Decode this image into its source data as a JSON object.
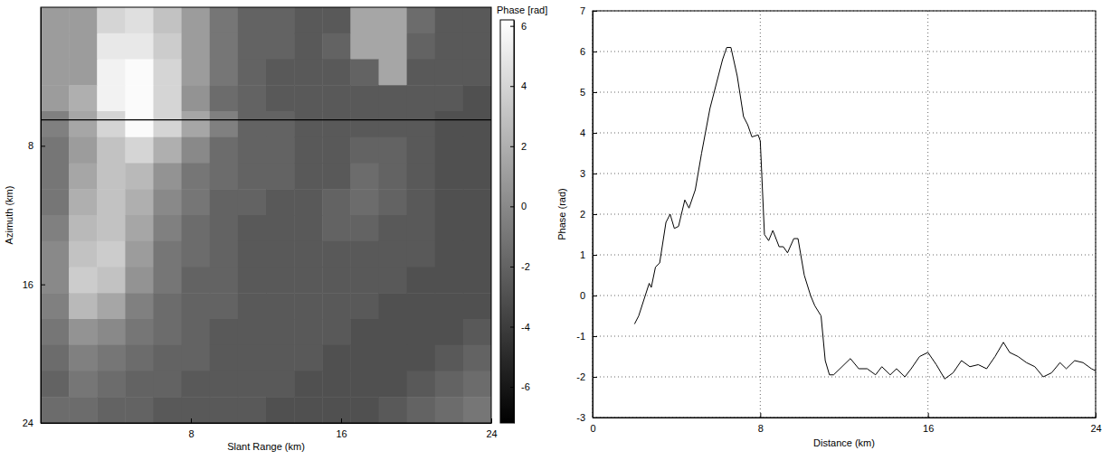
{
  "chart_data": [
    {
      "type": "heatmap",
      "xlabel": "Slant Range (km)",
      "ylabel": "Azimuth (km)",
      "xlim": [
        0,
        24
      ],
      "ylim": [
        0,
        24
      ],
      "xticks": [
        8,
        16,
        24
      ],
      "yticks": [
        8,
        16,
        24
      ],
      "profile_azimuth": 6.5,
      "colorbar": {
        "label": "Phase [rad]",
        "lim": [
          -7.2,
          6.2
        ],
        "ticks": [
          -6,
          -4,
          -2,
          0,
          2,
          4,
          6
        ]
      },
      "cells": [
        [
          1,
          1,
          4,
          4.5,
          3,
          1,
          -1,
          -2,
          -2,
          -2.5,
          -2.5,
          1.5,
          1.5,
          -1.5,
          -2.5,
          -2.5
        ],
        [
          1,
          1,
          5,
          5,
          3.5,
          1,
          -1,
          -2,
          -2,
          -2.5,
          -2,
          1.5,
          1.5,
          -2,
          -2.5,
          -2.5
        ],
        [
          1,
          1,
          5.5,
          6,
          4,
          1,
          -1,
          -2,
          -2.5,
          -2.5,
          -2.5,
          -2,
          1.5,
          -2.5,
          -2.5,
          -2.5
        ],
        [
          1,
          2,
          5.5,
          6,
          4,
          0.5,
          -1.5,
          -2,
          -2.5,
          -2.5,
          -2.5,
          -2.5,
          -2.5,
          -2.5,
          -2.5,
          -3
        ],
        [
          -0.5,
          1.5,
          4,
          6,
          4,
          1.5,
          -0.5,
          -2,
          -2,
          -2.5,
          -2.5,
          -2.5,
          -2.5,
          -2.5,
          -3,
          -3
        ],
        [
          -1,
          1,
          3,
          4,
          2,
          0,
          -1.5,
          -2,
          -2,
          -2.5,
          -2.5,
          -2,
          -2,
          -2.5,
          -3,
          -3
        ],
        [
          -1,
          1.5,
          3,
          2.5,
          0.5,
          -1,
          -1.5,
          -2,
          -2,
          -2.5,
          -2.5,
          -1.5,
          -2,
          -2.5,
          -3,
          -3
        ],
        [
          -1,
          2,
          3,
          2,
          0,
          -1,
          -2,
          -2,
          -2.5,
          -2.5,
          -2,
          -1.5,
          -2,
          -2.5,
          -3,
          -3
        ],
        [
          -0.5,
          2.5,
          3,
          1.5,
          -0.5,
          -1.5,
          -2,
          -2.5,
          -2.5,
          -2.5,
          -2,
          -2,
          -2.5,
          -2.5,
          -3,
          -3
        ],
        [
          0,
          3,
          3.5,
          1,
          -1,
          -1.5,
          -2,
          -2.5,
          -2.5,
          -2.5,
          -2.5,
          -2.5,
          -2.5,
          -2.5,
          -3,
          -3
        ],
        [
          0,
          3.5,
          3,
          0.5,
          -1,
          -2,
          -2,
          -2.5,
          -2.5,
          -2.5,
          -2.5,
          -2.5,
          -2.5,
          -3,
          -3,
          -3
        ],
        [
          -0.5,
          2.5,
          1.5,
          -0.5,
          -1.5,
          -2,
          -2,
          -2.5,
          -2.5,
          -2.5,
          -2.5,
          -2.5,
          -3,
          -3,
          -3,
          -3
        ],
        [
          -1,
          0.5,
          0,
          -1,
          -1.5,
          -2,
          -2.5,
          -2.5,
          -2.5,
          -2.5,
          -2.5,
          -3,
          -3,
          -3,
          -3,
          -2.5
        ],
        [
          -1.5,
          -0.5,
          -1,
          -1.5,
          -2,
          -2,
          -2.5,
          -2.5,
          -2.5,
          -2.5,
          -3,
          -3,
          -3,
          -3,
          -2.5,
          -2
        ],
        [
          -2,
          -1,
          -1.5,
          -2,
          -2,
          -2.5,
          -2.5,
          -2.5,
          -2.5,
          -3,
          -3,
          -3,
          -3,
          -2.5,
          -2,
          -1.5
        ],
        [
          -1.5,
          -1.5,
          -2,
          -2,
          -2.5,
          -2.5,
          -2.5,
          -2.5,
          -3,
          -3,
          -3,
          -3,
          -2.5,
          -2,
          -1.5,
          -1
        ]
      ]
    },
    {
      "type": "line",
      "xlabel": "Distance (km)",
      "ylabel": "Phase (rad)",
      "xlim": [
        0,
        24
      ],
      "ylim": [
        -3,
        7
      ],
      "xticks": [
        0,
        8,
        16,
        24
      ],
      "yticks": [
        -3,
        -2,
        -1,
        0,
        1,
        2,
        3,
        4,
        5,
        6,
        7
      ],
      "grid": true,
      "color": "#000000",
      "x": [
        2,
        2.2,
        2.7,
        2.8,
        3.0,
        3.2,
        3.5,
        3.7,
        3.9,
        4.1,
        4.4,
        4.6,
        4.9,
        5.2,
        5.6,
        5.9,
        6.2,
        6.4,
        6.6,
        6.9,
        7.2,
        7.4,
        7.6,
        7.9,
        8.0,
        8.2,
        8.4,
        8.6,
        8.9,
        9.1,
        9.3,
        9.6,
        9.8,
        10.1,
        10.4,
        10.6,
        10.9,
        11.1,
        11.3,
        11.5,
        12.0,
        12.3,
        12.7,
        13.1,
        13.5,
        13.8,
        14.2,
        14.5,
        14.9,
        15.2,
        15.6,
        16.0,
        16.4,
        16.8,
        17.2,
        17.6,
        18.0,
        18.4,
        18.8,
        19.2,
        19.6,
        19.9,
        20.3,
        20.7,
        21.1,
        21.5,
        21.9,
        22.3,
        22.6,
        23.0,
        23.4,
        23.8,
        24.0
      ],
      "values": [
        -0.7,
        -0.5,
        0.3,
        0.2,
        0.7,
        0.8,
        1.8,
        2.0,
        1.65,
        1.7,
        2.35,
        2.15,
        2.6,
        3.5,
        4.6,
        5.2,
        5.8,
        6.1,
        6.1,
        5.4,
        4.4,
        4.2,
        3.9,
        3.95,
        3.8,
        1.5,
        1.35,
        1.6,
        1.2,
        1.2,
        1.05,
        1.4,
        1.4,
        0.5,
        0,
        -0.25,
        -0.5,
        -1.6,
        -1.95,
        -1.95,
        -1.7,
        -1.55,
        -1.8,
        -1.8,
        -1.95,
        -1.75,
        -1.95,
        -1.8,
        -2.0,
        -1.8,
        -1.5,
        -1.4,
        -1.7,
        -2.05,
        -1.9,
        -1.6,
        -1.75,
        -1.7,
        -1.8,
        -1.5,
        -1.15,
        -1.4,
        -1.5,
        -1.65,
        -1.75,
        -2.0,
        -1.9,
        -1.65,
        -1.8,
        -1.6,
        -1.65,
        -1.8,
        -1.85
      ]
    }
  ]
}
